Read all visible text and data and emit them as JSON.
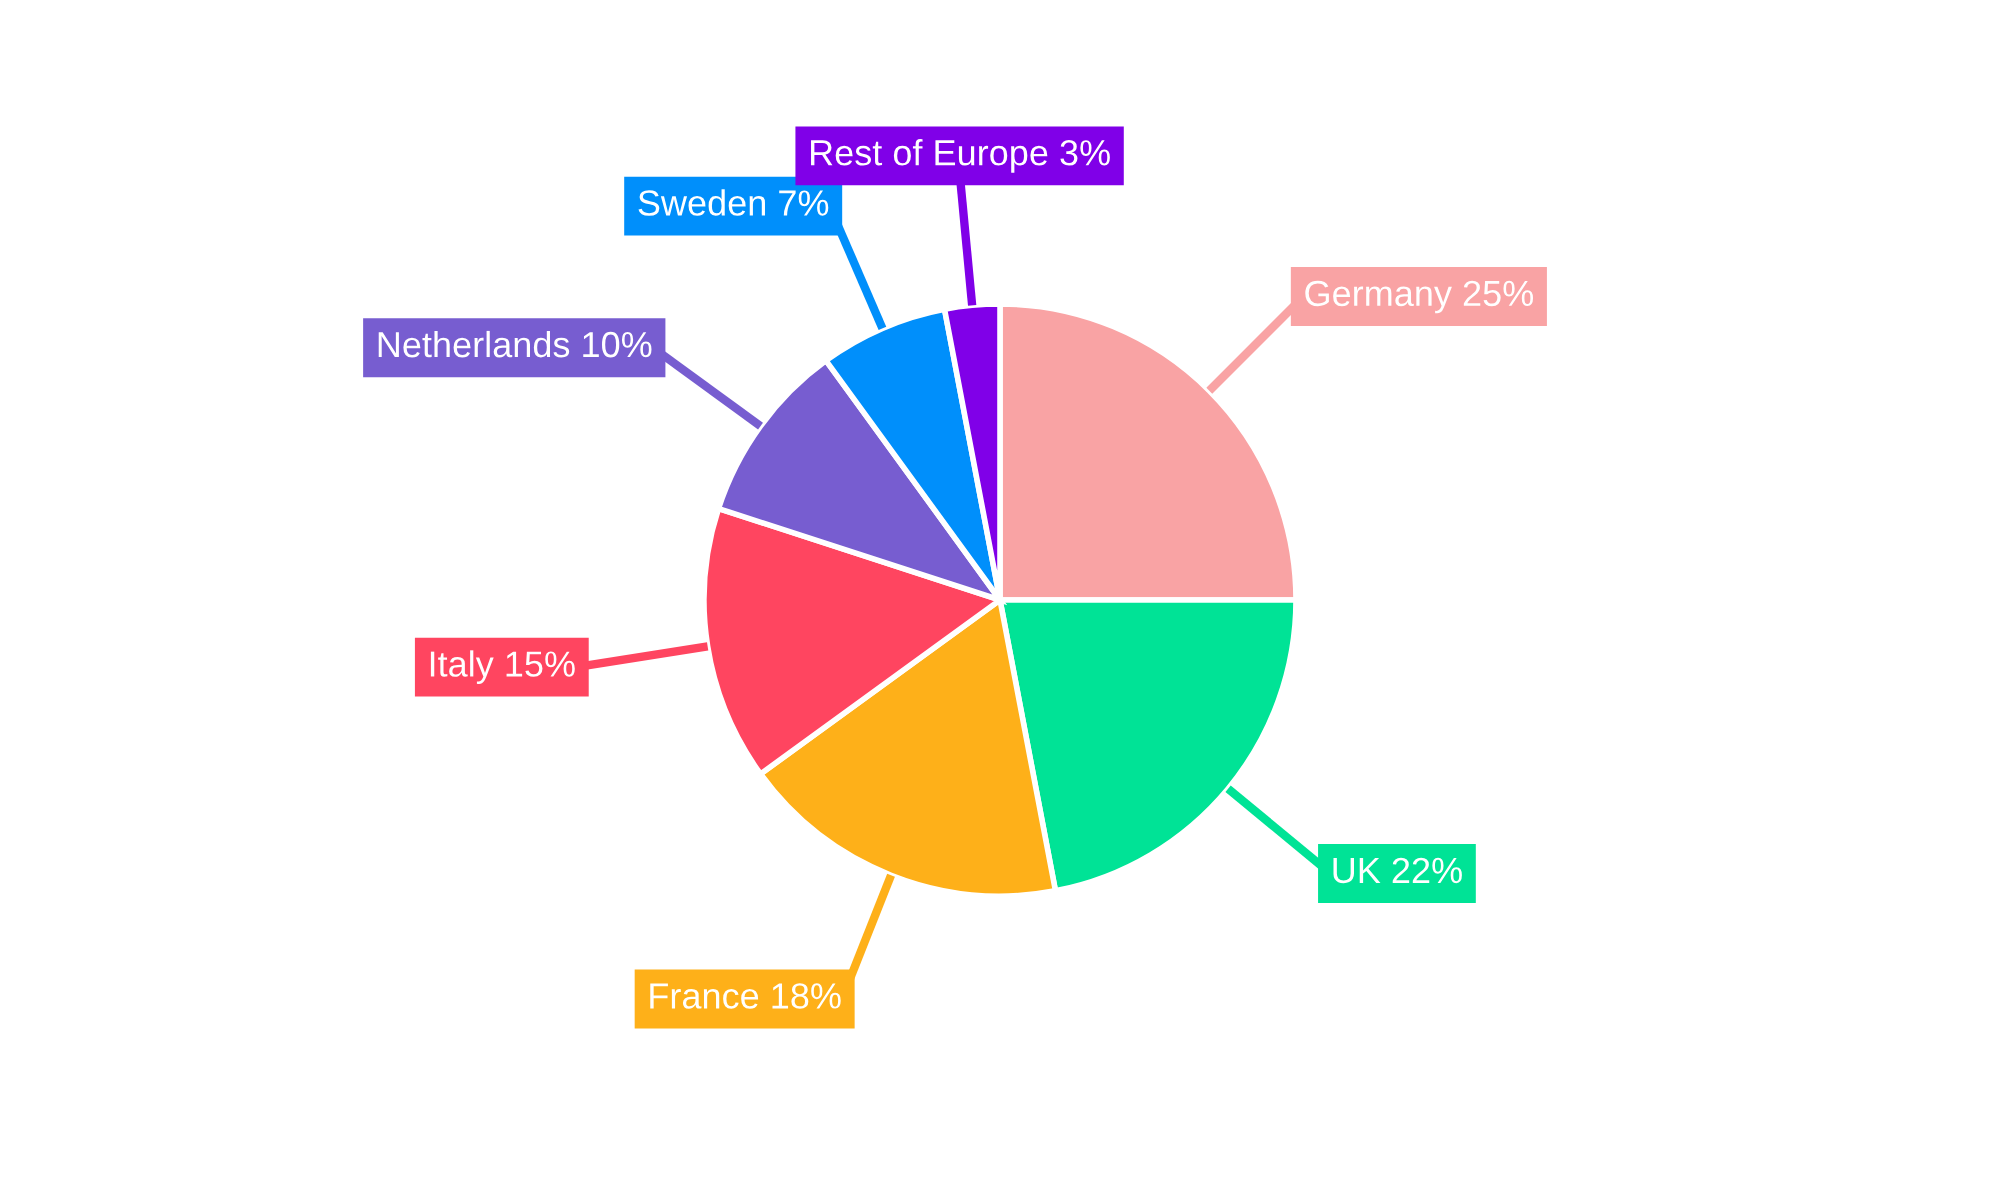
{
  "chart_data": {
    "type": "pie",
    "categories": [
      "Germany",
      "UK",
      "France",
      "Italy",
      "Netherlands",
      "Sweden",
      "Rest of Europe"
    ],
    "values": [
      25,
      22,
      18,
      15,
      10,
      7,
      3
    ],
    "value_labels": [
      "25%",
      "22%",
      "18%",
      "15%",
      "10%",
      "7%",
      "3%"
    ],
    "colors": [
      "#f9a3a4",
      "#00e396",
      "#feb019",
      "#ff4560",
      "#775dd0",
      "#008ffb",
      "#8000e8"
    ],
    "legend": false
  }
}
